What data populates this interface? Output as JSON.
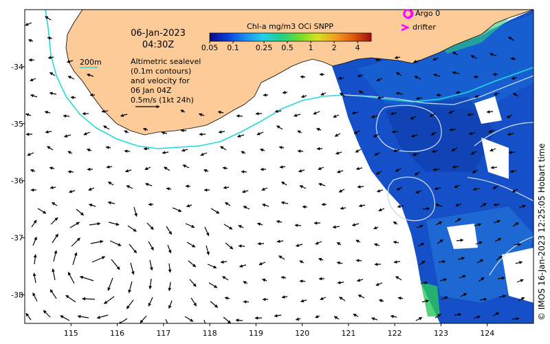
{
  "map": {
    "date": "06-Jan-2023",
    "time": "04:30Z",
    "contour_label": "200m",
    "notes": [
      "Altimetric sealevel",
      "(0.1m contours)",
      "and velocity for",
      "06 Jan 04Z",
      "0.5m/s (1kt 24h)"
    ],
    "colorbar": {
      "title": "Chl-a mg/m3 OCi SNPP",
      "tick_labels": [
        "0.05",
        "0.1",
        "0.25",
        "0.5",
        "1",
        "2",
        "4"
      ],
      "tick_values": [
        0.05,
        0.1,
        0.25,
        0.5,
        1,
        2,
        4
      ],
      "range": [
        0.05,
        6
      ],
      "scale": "log",
      "colors": [
        "#08088a",
        "#0a3fd8",
        "#1a8ef0",
        "#22d0e8",
        "#22d08a",
        "#6fdc2a",
        "#d8e020",
        "#f0a020",
        "#e05a10",
        "#a01010"
      ]
    },
    "legend": {
      "argo_label": "Argo 0",
      "drifter_label": "drifter",
      "argo_color": "#ff00ff",
      "drifter_color": "#ff00ff"
    },
    "credit": "© IMOS 16-Jan-2023 12:25:05 Hobart time",
    "colors": {
      "land": "#fccb98",
      "ocean_blank": "#ffffff",
      "isobath_200m": "#22d8e0",
      "sealevel_contour": "#c8d8ee",
      "vector": "#000000",
      "chl_background": "#1550c8"
    }
  },
  "chart_data": {
    "type": "heatmap",
    "title": "",
    "x_axis": {
      "label": "",
      "range": [
        114,
        125
      ],
      "ticks": [
        115,
        116,
        117,
        118,
        119,
        120,
        121,
        122,
        123,
        124
      ]
    },
    "y_axis": {
      "label": "",
      "range": [
        -38.5,
        -33
      ],
      "ticks": [
        -34,
        -35,
        -36,
        -37,
        -38
      ]
    },
    "grid": false,
    "legend_placement": "top-right",
    "vector_scale": {
      "speed_m_per_s": 0.5,
      "label": "0.5m/s (1kt 24h)"
    }
  }
}
